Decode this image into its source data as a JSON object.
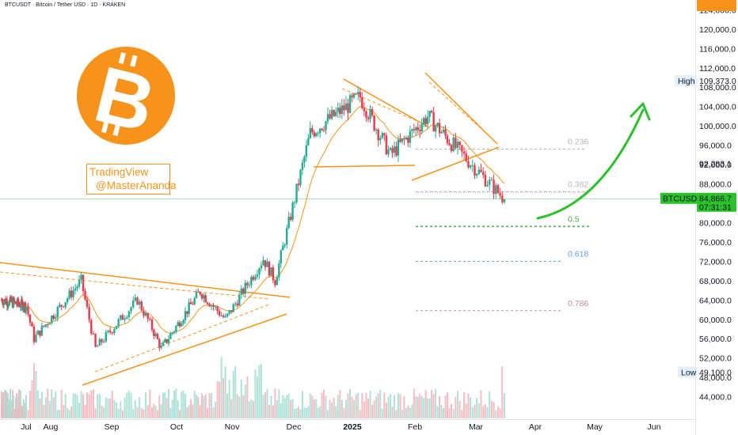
{
  "header": {
    "symbol_title": "BTCUSDT · Bitcoin / Tether USD · 1D · KRAKEN"
  },
  "watermark": {
    "line1": "TradingView",
    "line2": "@MasterAnanda"
  },
  "logo": {
    "name": "bitcoin-logo",
    "color": "#f7931a"
  },
  "colors": {
    "up": "#22ab94",
    "down": "#f23645",
    "trendline": "#f7931a",
    "ema": "#f7931a",
    "arrow": "#2bc12b",
    "price_label": "#2bc12b",
    "high_label": "#f7931a"
  },
  "chart_data": {
    "type": "candlestick",
    "symbol": "BTCUSDT",
    "timeframe": "1D",
    "exchange": "KRAKEN",
    "ylim": [
      41800,
      126000
    ],
    "price_ticks": [
      "124,000.0",
      "120,000.0",
      "116,000.0",
      "112,000.0",
      "108,000.0",
      "104,000.0",
      "100,000.0",
      "96,000.0",
      "92,000.0",
      "88,000.0",
      "84,000.0",
      "80,000.0",
      "76,000.0",
      "72,000.0",
      "68,000.0",
      "64,000.0",
      "60,000.0",
      "56,000.0",
      "52,000.0",
      "48,000.0",
      "44,000.0"
    ],
    "time_labels": [
      "Jul",
      "Aug",
      "Sep",
      "Oct",
      "Nov",
      "Dec",
      "2025",
      "Feb",
      "Mar",
      "Apr",
      "May",
      "Jun"
    ],
    "high_marker": {
      "label": "High",
      "value": 109373.0,
      "text": "109,373.0"
    },
    "low_marker": {
      "label": "Low",
      "value": 49100.0,
      "text": "49,100.0"
    },
    "price_label": {
      "symbol": "BTCUSDT",
      "value": 84866.7,
      "text": "84,866.7",
      "countdown": "07:31:31"
    },
    "ema_label": {
      "value": 92283.1,
      "text": "92,283.1"
    },
    "fibonacci": [
      {
        "level": "0.236",
        "price": 95200,
        "color": "#b2b5be"
      },
      {
        "level": "0.382",
        "price": 86400,
        "color": "#b2b5be"
      },
      {
        "level": "0.5",
        "price": 79200,
        "color": "#4caf50"
      },
      {
        "level": "0.618",
        "price": 72000,
        "color": "#5b9cf6"
      },
      {
        "level": "0.786",
        "price": 61800,
        "color": "#c48a9a"
      }
    ],
    "key_closes": [
      {
        "date": "Jul 1",
        "price": 62800
      },
      {
        "date": "Jul 5",
        "price": 56000
      },
      {
        "date": "Jul 29",
        "price": 68000
      },
      {
        "date": "Aug 5",
        "price": 54000
      },
      {
        "date": "Aug 25",
        "price": 64000
      },
      {
        "date": "Sep 6",
        "price": 54000
      },
      {
        "date": "Sep 27",
        "price": 65800
      },
      {
        "date": "Oct 10",
        "price": 60000
      },
      {
        "date": "Oct 29",
        "price": 72500
      },
      {
        "date": "Nov 4",
        "price": 68000
      },
      {
        "date": "Nov 22",
        "price": 98500
      },
      {
        "date": "Dec 17",
        "price": 106000
      },
      {
        "date": "Jan 1",
        "price": 94000
      },
      {
        "date": "Jan 20",
        "price": 102000
      },
      {
        "date": "Feb 26",
        "price": 84866.7
      }
    ],
    "grid": false,
    "legend": "none"
  }
}
